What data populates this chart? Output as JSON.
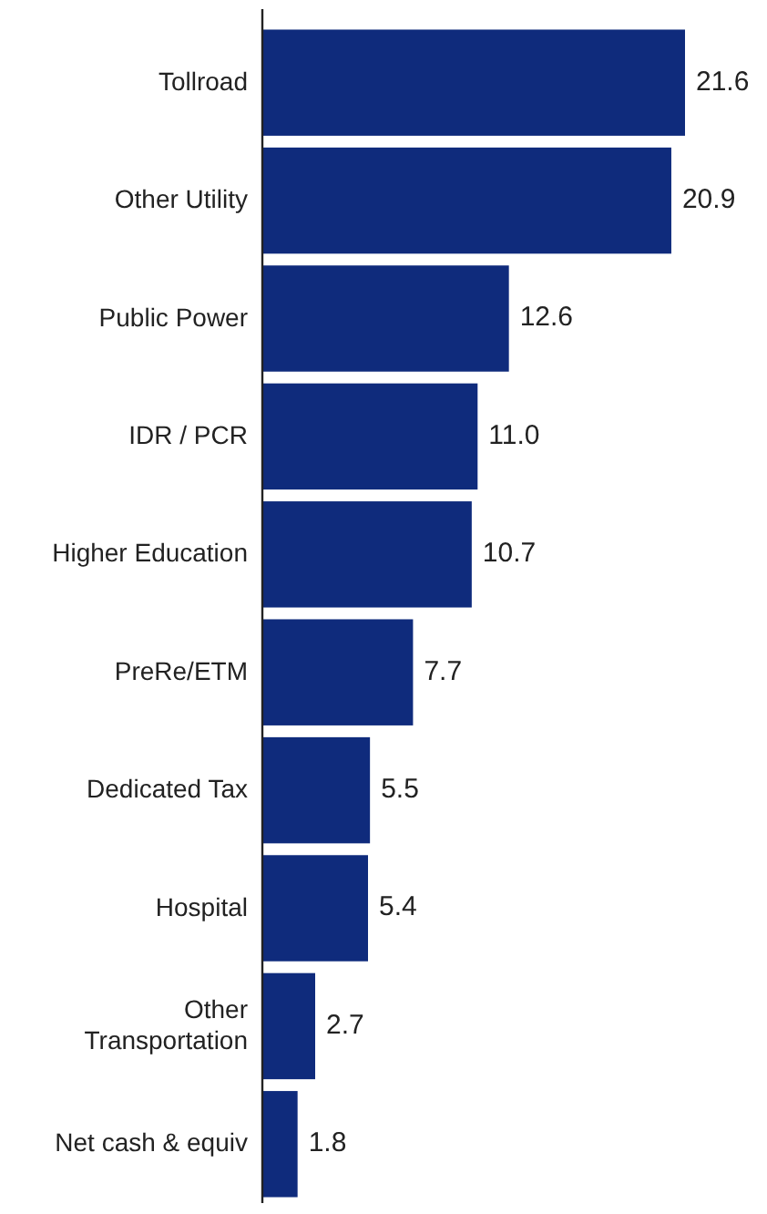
{
  "chart_data": {
    "type": "bar",
    "orientation": "horizontal",
    "categories": [
      "Tollroad",
      "Other Utility",
      "Public Power",
      "IDR / PCR",
      "Higher Education",
      "PreRe/ETM",
      "Dedicated Tax",
      "Hospital",
      "Other Transportation",
      "Net cash & equiv"
    ],
    "values": [
      21.6,
      20.9,
      12.6,
      11.0,
      10.7,
      7.7,
      5.5,
      5.4,
      2.7,
      1.8
    ],
    "value_labels": [
      "21.6",
      "20.9",
      "12.6",
      "11.0",
      "10.7",
      "7.7",
      "5.5",
      "5.4",
      "2.7",
      "1.8"
    ],
    "color": "#0f2b7c"
  }
}
